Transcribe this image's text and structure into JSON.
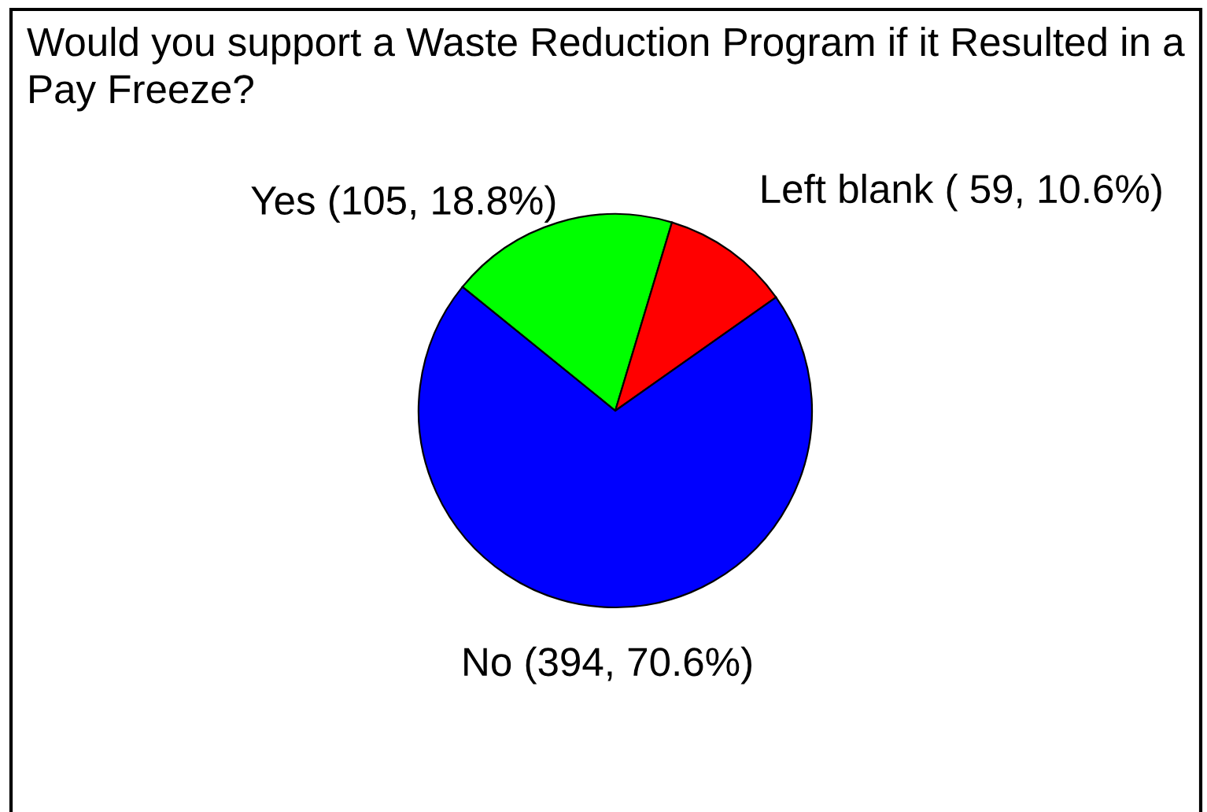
{
  "chart_data": {
    "type": "pie",
    "title": "Would you support a Waste Reduction Program if it Resulted in a Pay Freeze?",
    "categories": [
      "Yes",
      "Left blank",
      "No"
    ],
    "values": [
      105,
      59,
      394
    ],
    "colors": [
      "#00ff00",
      "#ff0000",
      "#0000ff"
    ],
    "value_labels": [
      "(105, 18.8%)",
      "( 59, 10.6%)",
      "(394, 70.6%)"
    ]
  }
}
